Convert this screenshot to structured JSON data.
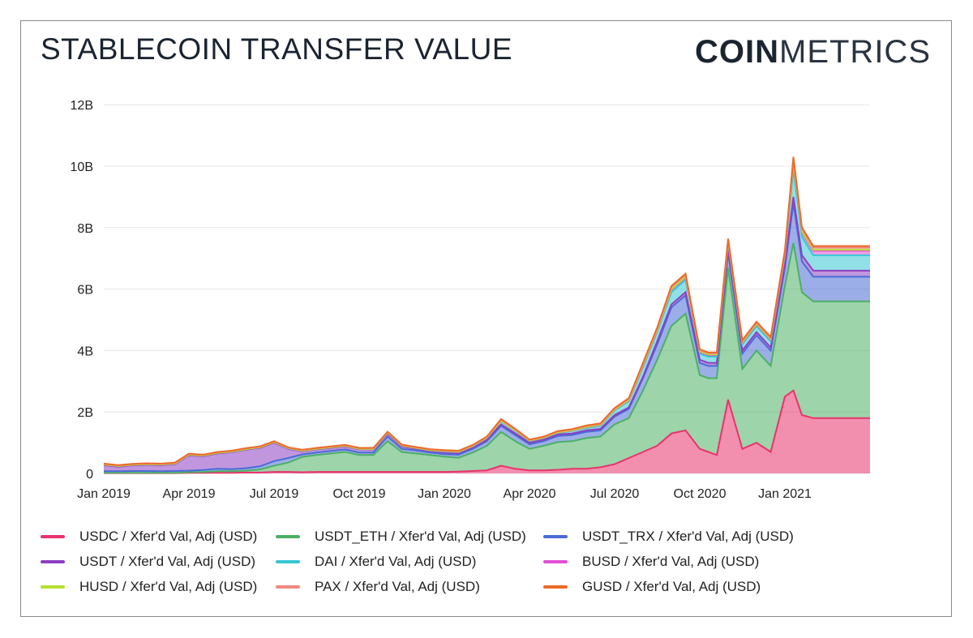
{
  "title": "STABLECOIN TRANSFER VALUE",
  "logo": {
    "bold": "COIN",
    "light": "METRICS"
  },
  "chart_data": {
    "type": "area",
    "stacked": true,
    "x_tick_labels": [
      "Jan 2019",
      "Apr 2019",
      "Jul 2019",
      "Oct 2019",
      "Jan 2020",
      "Apr 2020",
      "Jul 2020",
      "Oct 2020",
      "Jan 2021"
    ],
    "y_tick_labels": [
      "0",
      "2B",
      "4B",
      "6B",
      "8B",
      "10B",
      "12B"
    ],
    "ylim": [
      0,
      12.5
    ],
    "y_unit": "billions USD",
    "grid": true,
    "legend_position": "bottom",
    "x_months_since_2019_01": [
      0,
      0.5,
      1,
      1.5,
      2,
      2.5,
      3,
      3.5,
      4,
      4.5,
      5,
      5.5,
      6,
      6.5,
      7,
      7.5,
      8,
      8.5,
      9,
      9.5,
      10,
      10.5,
      11,
      11.5,
      12,
      12.5,
      13,
      13.5,
      14,
      14.5,
      15,
      15.5,
      16,
      16.5,
      17,
      17.5,
      18,
      18.5,
      19,
      19.5,
      20,
      20.5,
      21,
      21.3,
      21.6,
      22,
      22.5,
      23,
      23.5,
      24,
      24.3,
      24.6,
      25,
      25.5,
      26,
      26.5,
      27
    ],
    "x_dates": [
      "2019-01-01",
      "2019-01-16",
      "2019-02-01",
      "2019-02-15",
      "2019-03-01",
      "2019-03-16",
      "2019-04-01",
      "2019-04-16",
      "2019-05-01",
      "2019-05-16",
      "2019-06-01",
      "2019-06-16",
      "2019-07-01",
      "2019-07-16",
      "2019-08-01",
      "2019-08-16",
      "2019-09-01",
      "2019-09-16",
      "2019-10-01",
      "2019-10-16",
      "2019-11-01",
      "2019-11-16",
      "2019-12-01",
      "2019-12-16",
      "2020-01-01",
      "2020-01-16",
      "2020-02-01",
      "2020-02-15",
      "2020-03-01",
      "2020-03-16",
      "2020-04-01",
      "2020-04-16",
      "2020-05-01",
      "2020-05-16",
      "2020-06-01",
      "2020-06-16",
      "2020-07-01",
      "2020-07-16",
      "2020-08-01",
      "2020-08-16",
      "2020-09-01",
      "2020-09-16",
      "2020-10-01",
      "2020-10-10",
      "2020-10-19",
      "2020-11-01",
      "2020-11-16",
      "2020-12-01",
      "2020-12-16",
      "2021-01-01",
      "2021-01-10",
      "2021-01-19",
      "2021-02-01",
      "2021-02-15",
      "2021-03-01",
      "2021-03-16",
      "2021-04-01"
    ],
    "series": [
      {
        "name": "USDC / Xfer'd Val, Adj (USD)",
        "color": "#e8336b",
        "values": [
          0.01,
          0.01,
          0.01,
          0.01,
          0.01,
          0.01,
          0.02,
          0.02,
          0.02,
          0.02,
          0.03,
          0.03,
          0.05,
          0.05,
          0.04,
          0.05,
          0.05,
          0.05,
          0.05,
          0.05,
          0.05,
          0.05,
          0.05,
          0.05,
          0.05,
          0.06,
          0.08,
          0.1,
          0.25,
          0.15,
          0.1,
          0.1,
          0.12,
          0.15,
          0.15,
          0.2,
          0.3,
          0.5,
          0.7,
          0.9,
          1.3,
          1.4,
          0.8,
          0.7,
          0.6,
          2.4,
          0.8,
          1.0,
          0.7,
          2.5,
          2.7,
          1.9,
          1.8,
          1.8,
          1.8,
          1.8,
          1.8
        ]
      },
      {
        "name": "USDT_ETH / Xfer'd Val, Adj (USD)",
        "color": "#4cb064",
        "values": [
          0.01,
          0.01,
          0.01,
          0.01,
          0.01,
          0.01,
          0.02,
          0.03,
          0.05,
          0.05,
          0.06,
          0.1,
          0.2,
          0.3,
          0.5,
          0.55,
          0.6,
          0.65,
          0.55,
          0.55,
          1.0,
          0.65,
          0.6,
          0.55,
          0.5,
          0.45,
          0.6,
          0.8,
          1.1,
          0.9,
          0.7,
          0.8,
          0.9,
          0.9,
          1.0,
          1.0,
          1.3,
          1.3,
          2.0,
          2.8,
          3.5,
          3.8,
          2.4,
          2.4,
          2.5,
          4.3,
          2.6,
          3.0,
          2.8,
          3.6,
          4.8,
          4.0,
          3.8,
          3.8,
          3.8,
          3.8,
          3.8
        ]
      },
      {
        "name": "USDT_TRX / Xfer'd Val, Adj (USD)",
        "color": "#4a6bd4",
        "values": [
          0.05,
          0.05,
          0.06,
          0.06,
          0.05,
          0.06,
          0.05,
          0.06,
          0.08,
          0.07,
          0.08,
          0.1,
          0.15,
          0.15,
          0.08,
          0.08,
          0.08,
          0.08,
          0.08,
          0.08,
          0.15,
          0.1,
          0.1,
          0.08,
          0.08,
          0.1,
          0.12,
          0.15,
          0.2,
          0.2,
          0.15,
          0.15,
          0.2,
          0.2,
          0.2,
          0.2,
          0.25,
          0.3,
          0.4,
          0.5,
          0.6,
          0.6,
          0.4,
          0.4,
          0.4,
          0.5,
          0.5,
          0.5,
          0.5,
          0.6,
          1.3,
          1.0,
          0.8,
          0.8,
          0.8,
          0.8,
          0.8
        ]
      },
      {
        "name": "USDT / Xfer'd Val, Adj (USD)",
        "color": "#8e3fc2",
        "values": [
          0.2,
          0.15,
          0.18,
          0.2,
          0.2,
          0.22,
          0.5,
          0.45,
          0.5,
          0.55,
          0.6,
          0.6,
          0.6,
          0.3,
          0.1,
          0.1,
          0.1,
          0.1,
          0.1,
          0.1,
          0.1,
          0.08,
          0.05,
          0.05,
          0.05,
          0.05,
          0.05,
          0.05,
          0.05,
          0.05,
          0.05,
          0.05,
          0.05,
          0.05,
          0.05,
          0.05,
          0.05,
          0.05,
          0.05,
          0.1,
          0.1,
          0.1,
          0.1,
          0.1,
          0.1,
          0.1,
          0.1,
          0.1,
          0.1,
          0.1,
          0.2,
          0.2,
          0.2,
          0.2,
          0.2,
          0.2,
          0.2
        ]
      },
      {
        "name": "DAI / Xfer'd Val, Adj (USD)",
        "color": "#36c6d6",
        "values": [
          0.02,
          0.02,
          0.02,
          0.02,
          0.02,
          0.02,
          0.02,
          0.02,
          0.02,
          0.02,
          0.02,
          0.02,
          0.02,
          0.02,
          0.02,
          0.02,
          0.02,
          0.02,
          0.02,
          0.02,
          0.03,
          0.03,
          0.03,
          0.03,
          0.03,
          0.03,
          0.03,
          0.05,
          0.1,
          0.08,
          0.05,
          0.05,
          0.05,
          0.08,
          0.08,
          0.1,
          0.15,
          0.2,
          0.3,
          0.3,
          0.4,
          0.4,
          0.2,
          0.2,
          0.2,
          0.2,
          0.2,
          0.2,
          0.2,
          0.3,
          0.9,
          0.6,
          0.5,
          0.5,
          0.5,
          0.5,
          0.5
        ]
      },
      {
        "name": "BUSD / Xfer'd Val, Adj (USD)",
        "color": "#e24fd6",
        "values": [
          0,
          0,
          0,
          0,
          0,
          0,
          0,
          0,
          0,
          0,
          0,
          0,
          0,
          0,
          0,
          0,
          0,
          0,
          0,
          0,
          0,
          0,
          0,
          0,
          0.01,
          0.01,
          0.01,
          0.01,
          0.01,
          0.01,
          0.01,
          0.01,
          0.01,
          0.01,
          0.02,
          0.02,
          0.02,
          0.03,
          0.05,
          0.05,
          0.08,
          0.08,
          0.05,
          0.05,
          0.05,
          0.05,
          0.05,
          0.05,
          0.05,
          0.05,
          0.2,
          0.15,
          0.15,
          0.15,
          0.15,
          0.15,
          0.15
        ]
      },
      {
        "name": "HUSD / Xfer'd Val, Adj (USD)",
        "color": "#b5e02e",
        "values": [
          0,
          0,
          0,
          0,
          0,
          0,
          0,
          0,
          0,
          0,
          0,
          0,
          0,
          0,
          0,
          0,
          0,
          0,
          0,
          0,
          0,
          0,
          0,
          0,
          0.01,
          0.01,
          0.01,
          0.01,
          0.01,
          0.01,
          0.01,
          0.01,
          0.01,
          0.01,
          0.01,
          0.01,
          0.01,
          0.01,
          0.02,
          0.02,
          0.02,
          0.02,
          0.02,
          0.02,
          0.02,
          0.02,
          0.02,
          0.02,
          0.02,
          0.02,
          0.03,
          0.03,
          0.03,
          0.03,
          0.03,
          0.03,
          0.03
        ]
      },
      {
        "name": "PAX / Xfer'd Val, Adj (USD)",
        "color": "#f08a80",
        "values": [
          0.02,
          0.02,
          0.02,
          0.02,
          0.02,
          0.02,
          0.02,
          0.02,
          0.02,
          0.02,
          0.02,
          0.02,
          0.02,
          0.02,
          0.02,
          0.02,
          0.02,
          0.02,
          0.02,
          0.02,
          0.02,
          0.02,
          0.02,
          0.02,
          0.02,
          0.02,
          0.02,
          0.02,
          0.03,
          0.03,
          0.02,
          0.02,
          0.03,
          0.03,
          0.03,
          0.03,
          0.03,
          0.04,
          0.05,
          0.05,
          0.06,
          0.06,
          0.04,
          0.04,
          0.04,
          0.04,
          0.04,
          0.04,
          0.04,
          0.05,
          0.1,
          0.08,
          0.07,
          0.07,
          0.07,
          0.07,
          0.07
        ]
      },
      {
        "name": "GUSD / Xfer'd Val, Adj (USD)",
        "color": "#ec6a2a",
        "values": [
          0.01,
          0.01,
          0.01,
          0.01,
          0.01,
          0.01,
          0.01,
          0.01,
          0.01,
          0.01,
          0.01,
          0.01,
          0.01,
          0.01,
          0.01,
          0.01,
          0.01,
          0.01,
          0.01,
          0.01,
          0.01,
          0.01,
          0.01,
          0.01,
          0.01,
          0.01,
          0.01,
          0.01,
          0.02,
          0.02,
          0.01,
          0.01,
          0.01,
          0.01,
          0.02,
          0.02,
          0.02,
          0.02,
          0.03,
          0.03,
          0.04,
          0.04,
          0.03,
          0.03,
          0.03,
          0.03,
          0.03,
          0.03,
          0.03,
          0.04,
          0.07,
          0.05,
          0.05,
          0.05,
          0.05,
          0.05,
          0.05
        ]
      }
    ]
  }
}
